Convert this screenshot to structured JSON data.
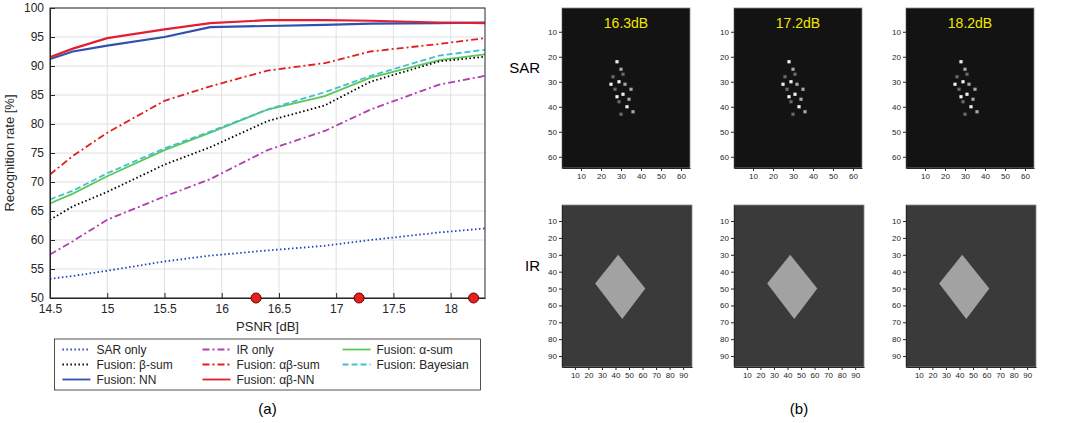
{
  "chart_data": [
    {
      "type": "line",
      "x_label": "PSNR [dB]",
      "y_label": "Recognition rate [%]",
      "x": [
        14.5,
        14.7,
        15.0,
        15.5,
        15.9,
        16.4,
        16.9,
        17.3,
        17.9,
        18.3
      ],
      "xlim": [
        14.5,
        18.3
      ],
      "xticks": [
        14.5,
        15,
        15.5,
        16,
        16.5,
        17,
        17.5,
        18
      ],
      "ylim": [
        50,
        100
      ],
      "yticks": [
        50,
        55,
        60,
        65,
        70,
        75,
        80,
        85,
        90,
        95,
        100
      ],
      "grid": true,
      "legend": "bottom",
      "series": [
        {
          "name": "SAR only",
          "color": "#2040c0",
          "line_style": "dotted",
          "values": [
            53.3,
            53.8,
            54.7,
            56.3,
            57.3,
            58.2,
            59.0,
            60.0,
            61.3,
            62.0
          ]
        },
        {
          "name": "IR only",
          "color": "#b040b0",
          "line_style": "dashdot",
          "values": [
            57.5,
            59.8,
            63.5,
            67.5,
            70.5,
            75.5,
            78.8,
            82.5,
            86.8,
            88.3
          ]
        },
        {
          "name": "Fusion: α-sum",
          "color": "#5ac85a",
          "line_style": "solid",
          "values": [
            66.3,
            68.0,
            71.0,
            75.5,
            78.5,
            82.5,
            84.8,
            88.0,
            91.0,
            92.0
          ]
        },
        {
          "name": "Fusion: β-sum",
          "color": "#000000",
          "line_style": "dotted",
          "values": [
            63.5,
            65.8,
            68.3,
            73.0,
            76.0,
            80.5,
            83.2,
            87.3,
            90.8,
            91.6
          ]
        },
        {
          "name": "Fusion: αβ-sum",
          "color": "#e02020",
          "line_style": "dashdot",
          "values": [
            71.3,
            74.5,
            78.5,
            84.0,
            86.5,
            89.2,
            90.5,
            92.5,
            93.8,
            94.8
          ]
        },
        {
          "name": "Fusion: Bayesian",
          "color": "#40c0d0",
          "line_style": "dashed",
          "values": [
            67.0,
            68.5,
            71.5,
            75.8,
            78.7,
            82.5,
            85.5,
            88.3,
            91.8,
            92.8
          ]
        },
        {
          "name": "Fusion: NN",
          "color": "#3050b0",
          "line_style": "solid",
          "values": [
            91.2,
            92.5,
            93.5,
            95.0,
            96.7,
            96.9,
            97.1,
            97.3,
            97.4,
            97.5
          ]
        },
        {
          "name": "Fusion: αβ-NN",
          "color": "#e02030",
          "line_style": "solid",
          "values": [
            91.5,
            93.0,
            94.8,
            96.3,
            97.4,
            97.9,
            97.9,
            97.8,
            97.5,
            97.4
          ]
        }
      ],
      "highlights": {
        "x": [
          16.3,
          17.2,
          18.2
        ],
        "y": [
          50,
          50,
          50
        ],
        "color": "#e8201c",
        "marker": "circle"
      }
    },
    {
      "type": "image",
      "title": "16.3dB",
      "xlim": [
        0.5,
        64.5
      ],
      "ylim": [
        64.5,
        0.5
      ],
      "xticks": [
        10,
        20,
        30,
        40,
        50,
        60
      ],
      "yticks": [
        10,
        20,
        30,
        40,
        50,
        60
      ]
    },
    {
      "type": "image",
      "title": "17.2dB",
      "xlim": [
        0.5,
        64.5
      ],
      "ylim": [
        64.5,
        0.5
      ],
      "xticks": [
        10,
        20,
        30,
        40,
        50,
        60
      ],
      "yticks": [
        10,
        20,
        30,
        40,
        50,
        60
      ]
    },
    {
      "type": "image",
      "title": "18.2dB",
      "xlim": [
        0.5,
        64.5
      ],
      "ylim": [
        64.5,
        0.5
      ],
      "xticks": [
        10,
        20,
        30,
        40,
        50,
        60
      ],
      "yticks": [
        10,
        20,
        30,
        40,
        50,
        60
      ]
    },
    {
      "type": "image",
      "xlim": [
        0.5,
        96.5
      ],
      "ylim": [
        96.5,
        0.5
      ],
      "xticks": [
        10,
        20,
        30,
        40,
        50,
        60,
        70,
        80,
        90
      ],
      "yticks": [
        10,
        20,
        30,
        40,
        50,
        60,
        70,
        80,
        90
      ]
    },
    {
      "type": "image",
      "xlim": [
        0.5,
        96.5
      ],
      "ylim": [
        96.5,
        0.5
      ],
      "xticks": [
        10,
        20,
        30,
        40,
        50,
        60,
        70,
        80,
        90
      ],
      "yticks": [
        10,
        20,
        30,
        40,
        50,
        60,
        70,
        80,
        90
      ]
    },
    {
      "type": "image",
      "xlim": [
        0.5,
        96.5
      ],
      "ylim": [
        96.5,
        0.5
      ],
      "xticks": [
        10,
        20,
        30,
        40,
        50,
        60,
        70,
        80,
        90
      ],
      "yticks": [
        10,
        20,
        30,
        40,
        50,
        60,
        70,
        80,
        90
      ]
    }
  ],
  "figure": {
    "captions": [
      "(a)",
      "(b)"
    ],
    "row_labels": [
      "SAR",
      "IR"
    ]
  }
}
